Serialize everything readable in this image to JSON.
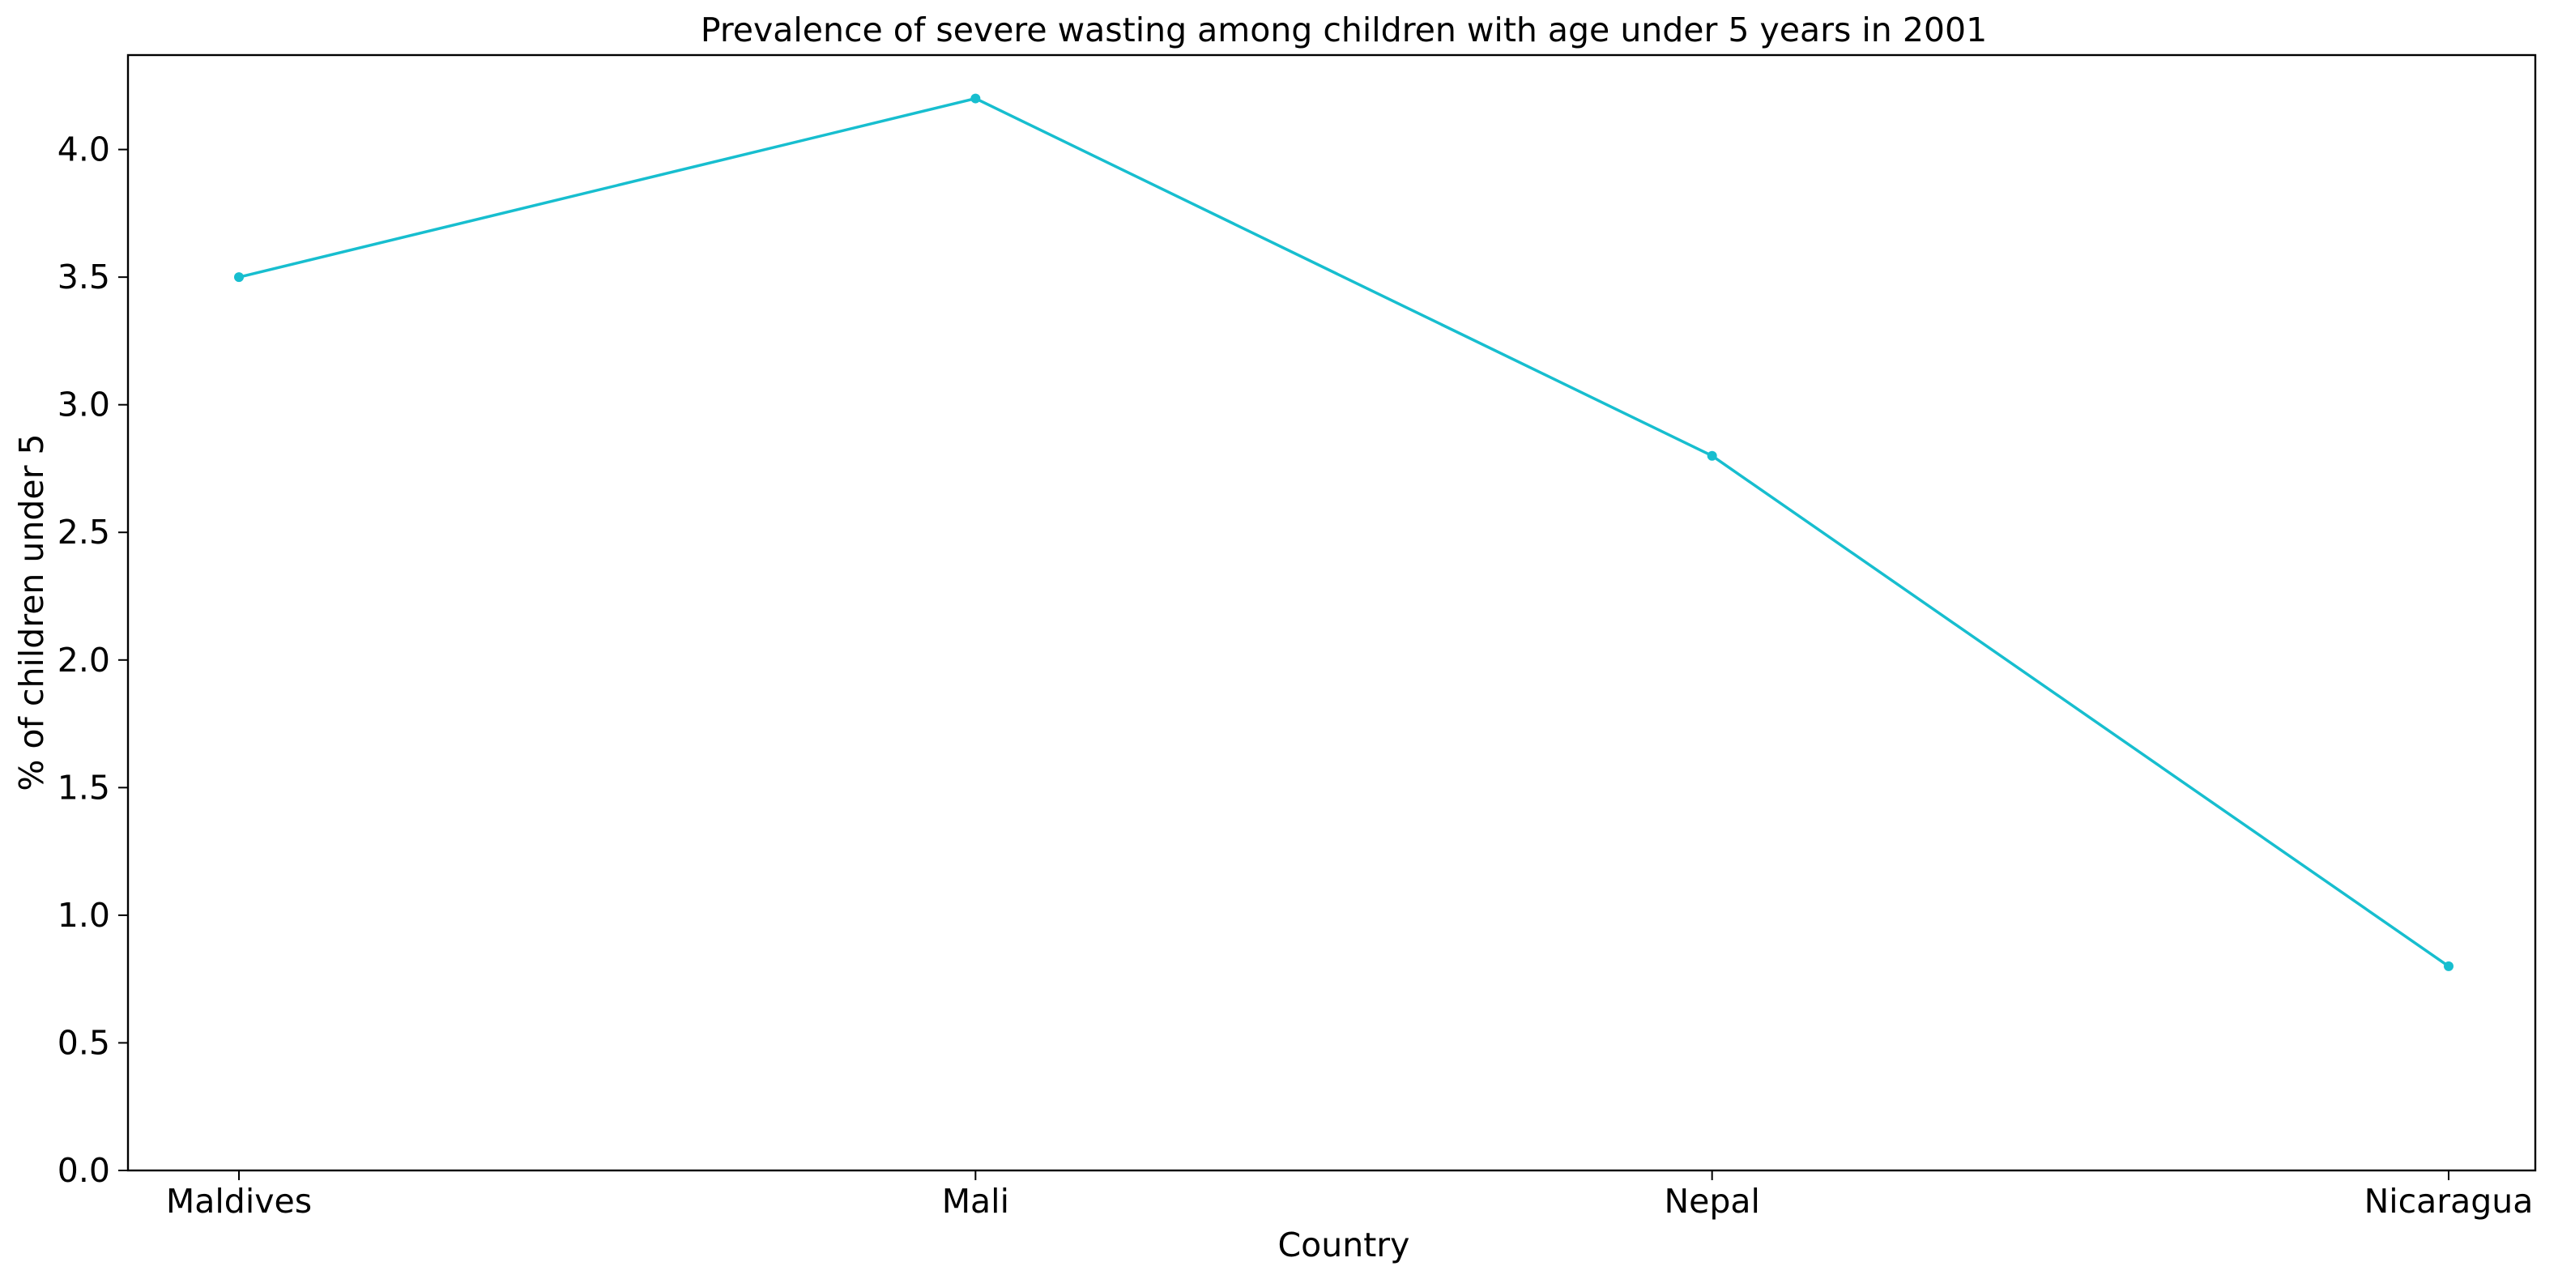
{
  "chart_data": {
    "type": "line",
    "title": "Prevalence of severe wasting among children with age under 5 years in 2001",
    "xlabel": "Country",
    "ylabel": "% of children under 5",
    "categories": [
      "Maldives",
      "Mali",
      "Nepal",
      "Nicaragua"
    ],
    "series": [
      {
        "values": [
          3.5,
          4.2,
          2.8,
          0.8
        ],
        "color": "#17BECF",
        "marker": "circle"
      }
    ],
    "ylim": [
      0,
      4.37
    ],
    "yticks": [
      0.0,
      0.5,
      1.0,
      1.5,
      2.0,
      2.5,
      3.0,
      3.5,
      4.0
    ],
    "ytick_labels": [
      "0.0",
      "0.5",
      "1.0",
      "1.5",
      "2.0",
      "2.5",
      "3.0",
      "3.5",
      "4.0"
    ],
    "grid": false,
    "legend": "none"
  }
}
